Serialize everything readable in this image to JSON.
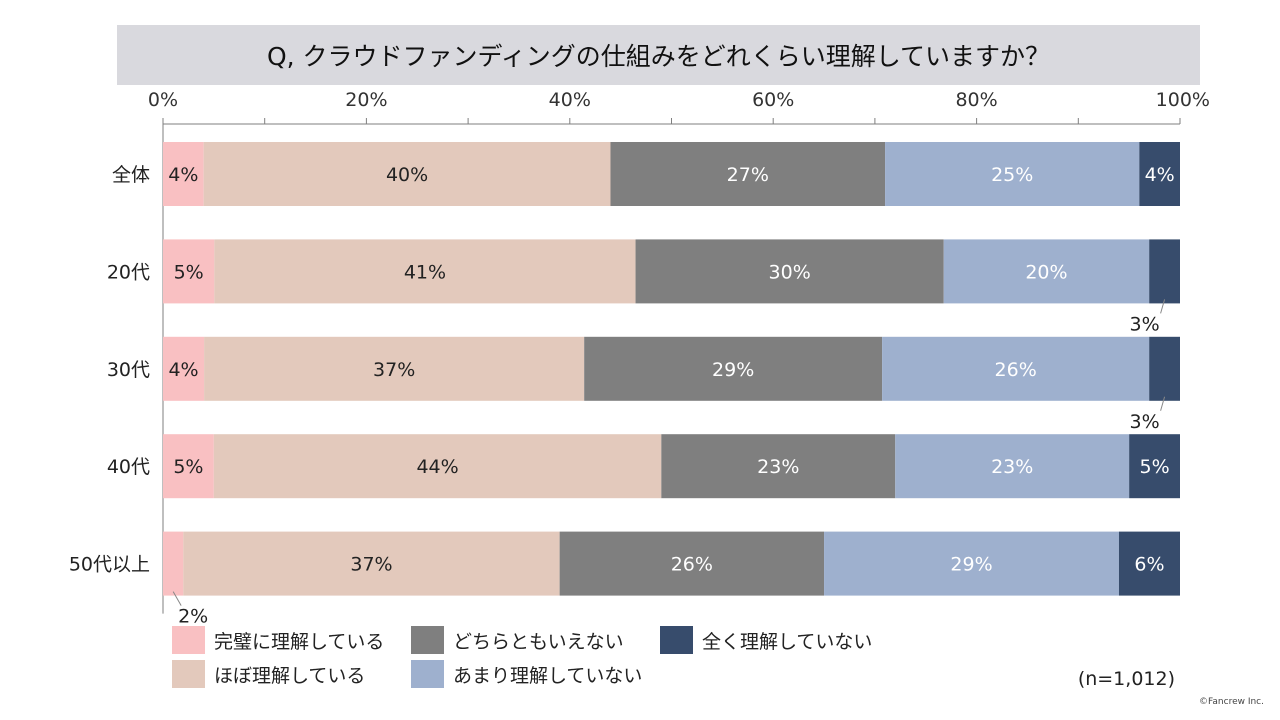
{
  "chart_data": {
    "type": "bar",
    "orientation": "horizontal",
    "stacked": true,
    "title": "Q, クラウドファンディングの仕組みをどれくらい理解していますか？",
    "categories": [
      "全体",
      "20代",
      "30代",
      "40代",
      "50代以上"
    ],
    "xlim": [
      0,
      100
    ],
    "x_ticks": [
      "0%",
      "20%",
      "40%",
      "60%",
      "80%",
      "100%"
    ],
    "grid": false,
    "series": [
      {
        "name": "完璧に理解している",
        "color": "#f9c0c2",
        "values": [
          4,
          5,
          4,
          5,
          2
        ],
        "labels": [
          "4%",
          "5%",
          "4%",
          "5%",
          "2%"
        ],
        "label_color": "#222222"
      },
      {
        "name": "ほぼ理解している",
        "color": "#e3c9bc",
        "values": [
          40,
          41,
          37,
          44,
          37
        ],
        "labels": [
          "40%",
          "41%",
          "37%",
          "44%",
          "37%"
        ],
        "label_color": "#222222"
      },
      {
        "name": "どちらともいえない",
        "color": "#7f7f7f",
        "values": [
          27,
          30,
          29,
          23,
          26
        ],
        "labels": [
          "27%",
          "30%",
          "29%",
          "23%",
          "26%"
        ],
        "label_color": "#ffffff"
      },
      {
        "name": "あまり理解していない",
        "color": "#9eb0ce",
        "values": [
          25,
          20,
          26,
          23,
          29
        ],
        "labels": [
          "25%",
          "20%",
          "26%",
          "23%",
          "29%"
        ],
        "label_color": "#ffffff"
      },
      {
        "name": "全く理解していない",
        "color": "#374c6c",
        "values": [
          4,
          3,
          3,
          5,
          6
        ],
        "labels": [
          "4%",
          "3%",
          "3%",
          "5%",
          "6%"
        ],
        "label_color": "#ffffff"
      }
    ],
    "sample_size": "(n=1,012)",
    "credit": "©Fancrew Inc."
  }
}
